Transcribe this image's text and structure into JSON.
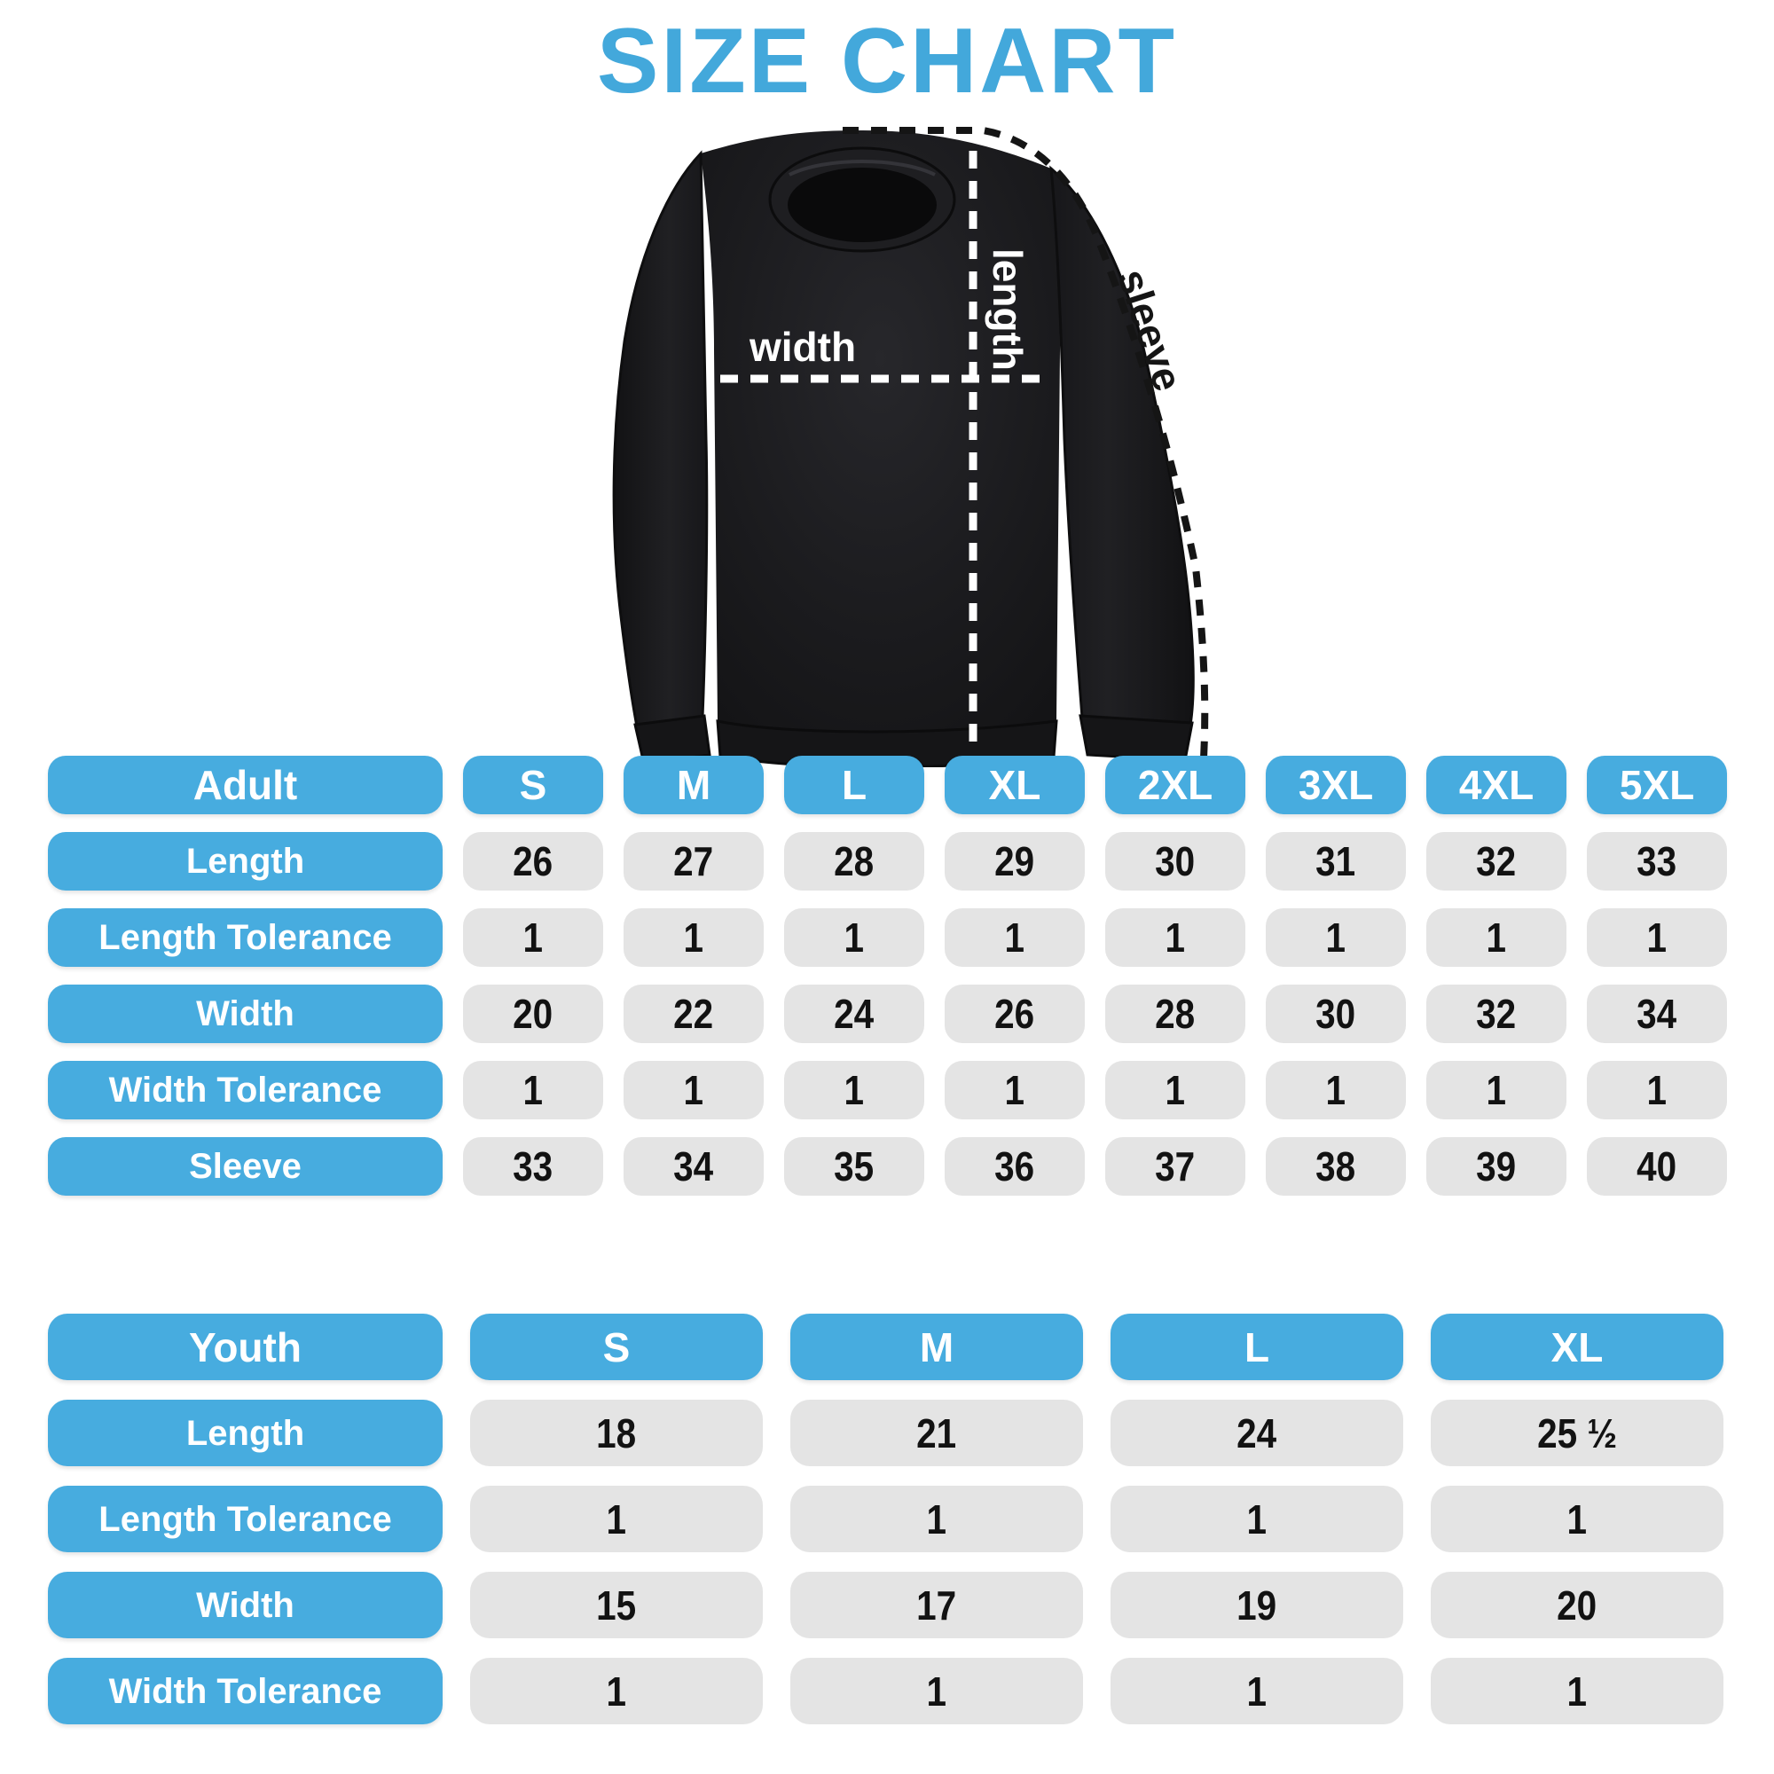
{
  "title": "SIZE CHART",
  "colors": {
    "accent": "#47acdf",
    "title": "#43a8db",
    "cell_background": "#e4e4e4",
    "number_text": "#121212",
    "garment": "#1b1b1d",
    "measure_line_white": "#ffffff",
    "measure_line_black": "#151515"
  },
  "diagram": {
    "garment": "crewneck-sweatshirt",
    "labels": {
      "width": "width",
      "length": "length",
      "sleeve": "sleeve"
    }
  },
  "adult_table": {
    "header": [
      "Adult",
      "S",
      "M",
      "L",
      "XL",
      "2XL",
      "3XL",
      "4XL",
      "5XL"
    ],
    "rows": [
      {
        "label": "Length",
        "values": [
          "26",
          "27",
          "28",
          "29",
          "30",
          "31",
          "32",
          "33"
        ]
      },
      {
        "label": "Length Tolerance",
        "values": [
          "1",
          "1",
          "1",
          "1",
          "1",
          "1",
          "1",
          "1"
        ]
      },
      {
        "label": "Width",
        "values": [
          "20",
          "22",
          "24",
          "26",
          "28",
          "30",
          "32",
          "34"
        ]
      },
      {
        "label": "Width Tolerance",
        "values": [
          "1",
          "1",
          "1",
          "1",
          "1",
          "1",
          "1",
          "1"
        ]
      },
      {
        "label": "Sleeve",
        "values": [
          "33",
          "34",
          "35",
          "36",
          "37",
          "38",
          "39",
          "40"
        ]
      }
    ]
  },
  "youth_table": {
    "header": [
      "Youth",
      "S",
      "M",
      "L",
      "XL"
    ],
    "rows": [
      {
        "label": "Length",
        "values": [
          "18",
          "21",
          "24",
          "25 ½"
        ]
      },
      {
        "label": "Length Tolerance",
        "values": [
          "1",
          "1",
          "1",
          "1"
        ]
      },
      {
        "label": "Width",
        "values": [
          "15",
          "17",
          "19",
          "20"
        ]
      },
      {
        "label": "Width Tolerance",
        "values": [
          "1",
          "1",
          "1",
          "1"
        ]
      }
    ]
  }
}
